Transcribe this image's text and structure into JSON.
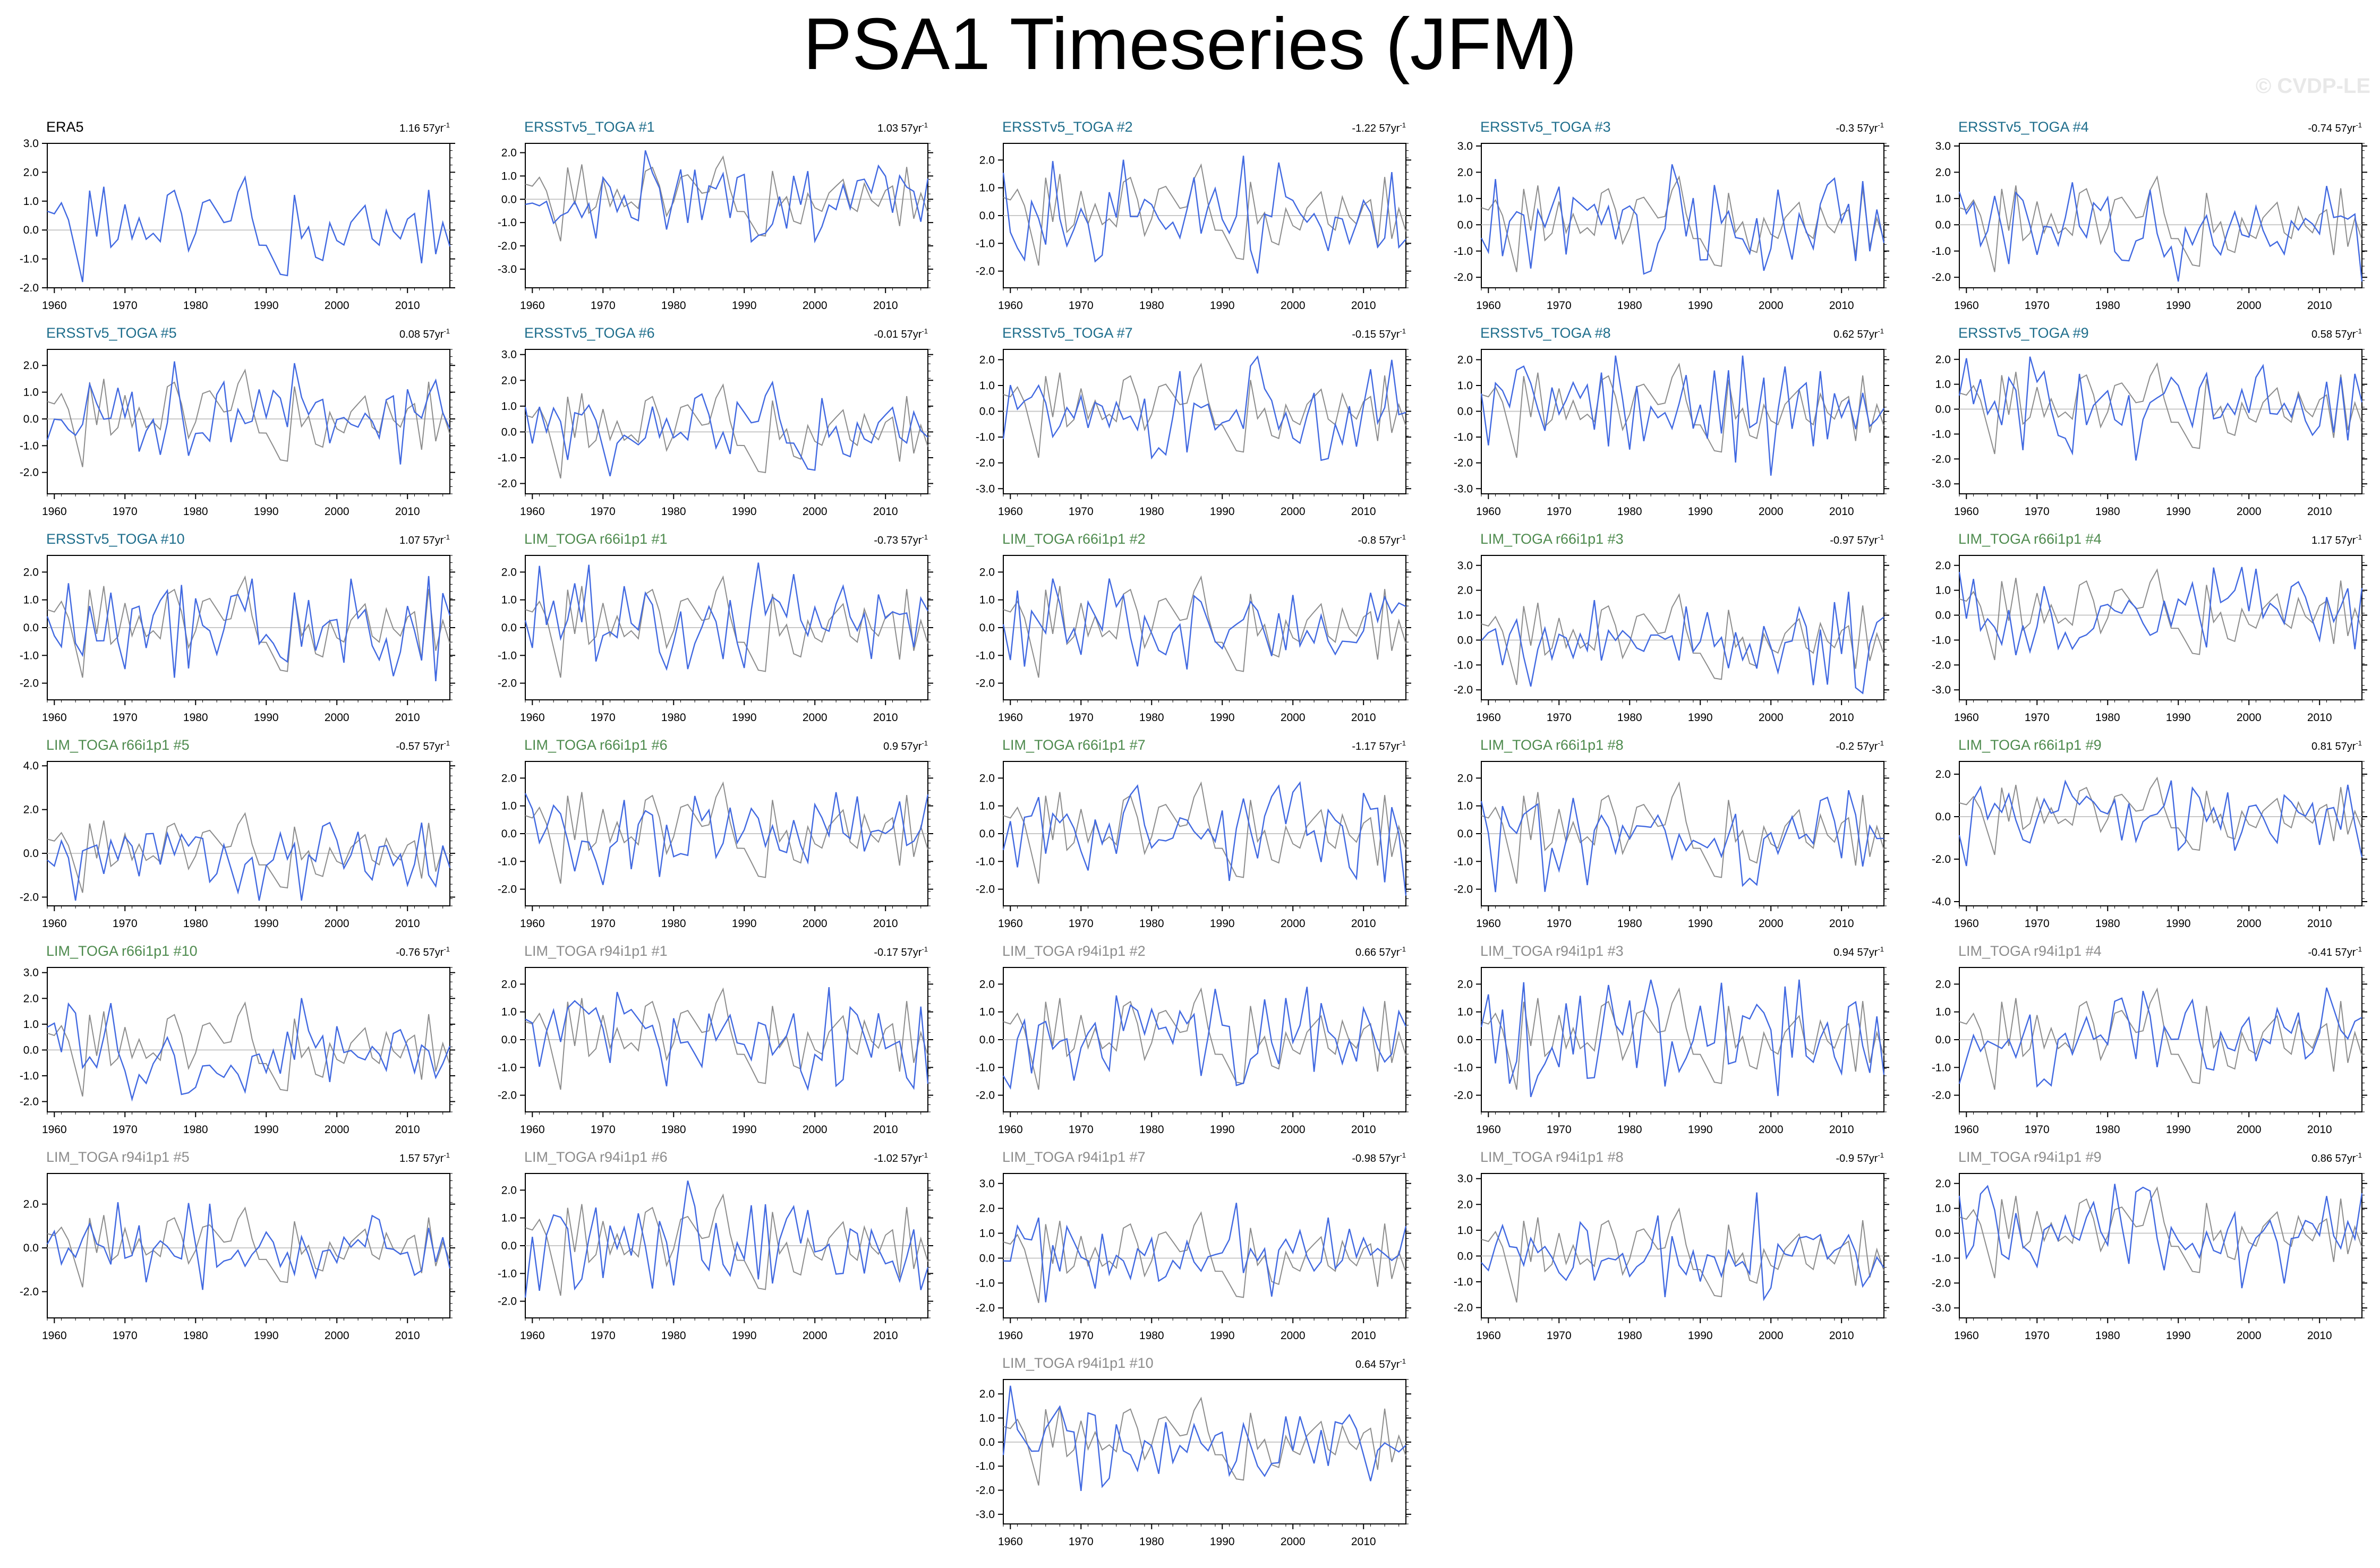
{
  "title": "PSA1 Timeseries (JFM)",
  "watermark": "© CVDP-LE",
  "colors": {
    "model_line": "#4169e1",
    "obs_line": "#8c8c8c",
    "zero_line": "#c8c8c8",
    "title_obs": "#000000",
    "title_ersst": "#1f6e8c",
    "title_lim66": "#4e8b4e",
    "title_lim94": "#8c8c8c"
  },
  "chart_data": [
    {
      "type": "line",
      "title": "ERA5",
      "title_color": "title_obs",
      "trend": "1.16",
      "trend_unit": "57yr",
      "ylim": [
        -2.0,
        3.0
      ],
      "yticks": [
        "3.0",
        "2.0",
        "1.0",
        "0.0",
        "-1.0",
        "-2.0"
      ],
      "xticks": [
        "1960",
        "1970",
        "1980",
        "1990",
        "2000",
        "2010"
      ],
      "x_range": [
        1959,
        2016
      ],
      "seed": 1
    },
    {
      "type": "line",
      "title": "ERSSTv5_TOGA #1",
      "title_color": "title_ersst",
      "trend": "1.03",
      "trend_unit": "57yr",
      "ylim": [
        -3.8,
        2.4
      ],
      "yticks": [
        "2.0",
        "1.0",
        "0.0",
        "-1.0",
        "-2.0",
        "-3.0"
      ],
      "xticks": [
        "1960",
        "1970",
        "1980",
        "1990",
        "2000",
        "2010"
      ],
      "x_range": [
        1959,
        2016
      ],
      "seed": 2
    },
    {
      "type": "line",
      "title": "ERSSTv5_TOGA #2",
      "title_color": "title_ersst",
      "trend": "-1.22",
      "trend_unit": "57yr",
      "ylim": [
        -2.6,
        2.6
      ],
      "yticks": [
        "2.0",
        "1.0",
        "0.0",
        "-1.0",
        "-2.0"
      ],
      "xticks": [
        "1960",
        "1970",
        "1980",
        "1990",
        "2000",
        "2010"
      ],
      "x_range": [
        1959,
        2016
      ],
      "seed": 3
    },
    {
      "type": "line",
      "title": "ERSSTv5_TOGA #3",
      "title_color": "title_ersst",
      "trend": "-0.3",
      "trend_unit": "57yr",
      "ylim": [
        -2.4,
        3.1
      ],
      "yticks": [
        "3.0",
        "2.0",
        "1.0",
        "0.0",
        "-1.0",
        "-2.0"
      ],
      "xticks": [
        "1960",
        "1970",
        "1980",
        "1990",
        "2000",
        "2010"
      ],
      "x_range": [
        1959,
        2016
      ],
      "seed": 4
    },
    {
      "type": "line",
      "title": "ERSSTv5_TOGA #4",
      "title_color": "title_ersst",
      "trend": "-0.74",
      "trend_unit": "57yr",
      "ylim": [
        -2.4,
        3.1
      ],
      "yticks": [
        "3.0",
        "2.0",
        "1.0",
        "0.0",
        "-1.0",
        "-2.0"
      ],
      "xticks": [
        "1960",
        "1970",
        "1980",
        "1990",
        "2000",
        "2010"
      ],
      "x_range": [
        1959,
        2016
      ],
      "seed": 5
    },
    {
      "type": "line",
      "title": "ERSSTv5_TOGA #5",
      "title_color": "title_ersst",
      "trend": "0.08",
      "trend_unit": "57yr",
      "ylim": [
        -2.8,
        2.6
      ],
      "yticks": [
        "2.0",
        "1.0",
        "0.0",
        "-1.0",
        "-2.0"
      ],
      "xticks": [
        "1960",
        "1970",
        "1980",
        "1990",
        "2000",
        "2010"
      ],
      "x_range": [
        1959,
        2016
      ],
      "seed": 6
    },
    {
      "type": "line",
      "title": "ERSSTv5_TOGA #6",
      "title_color": "title_ersst",
      "trend": "-0.01",
      "trend_unit": "57yr",
      "ylim": [
        -2.4,
        3.2
      ],
      "yticks": [
        "3.0",
        "2.0",
        "1.0",
        "0.0",
        "-1.0",
        "-2.0"
      ],
      "xticks": [
        "1960",
        "1970",
        "1980",
        "1990",
        "2000",
        "2010"
      ],
      "x_range": [
        1959,
        2016
      ],
      "seed": 7
    },
    {
      "type": "line",
      "title": "ERSSTv5_TOGA #7",
      "title_color": "title_ersst",
      "trend": "-0.15",
      "trend_unit": "57yr",
      "ylim": [
        -3.2,
        2.4
      ],
      "yticks": [
        "2.0",
        "1.0",
        "0.0",
        "-1.0",
        "-2.0",
        "-3.0"
      ],
      "xticks": [
        "1960",
        "1970",
        "1980",
        "1990",
        "2000",
        "2010"
      ],
      "x_range": [
        1959,
        2016
      ],
      "seed": 8
    },
    {
      "type": "line",
      "title": "ERSSTv5_TOGA #8",
      "title_color": "title_ersst",
      "trend": "0.62",
      "trend_unit": "57yr",
      "ylim": [
        -3.2,
        2.4
      ],
      "yticks": [
        "2.0",
        "1.0",
        "0.0",
        "-1.0",
        "-2.0",
        "-3.0"
      ],
      "xticks": [
        "1960",
        "1970",
        "1980",
        "1990",
        "2000",
        "2010"
      ],
      "x_range": [
        1959,
        2016
      ],
      "seed": 9
    },
    {
      "type": "line",
      "title": "ERSSTv5_TOGA #9",
      "title_color": "title_ersst",
      "trend": "0.58",
      "trend_unit": "57yr",
      "ylim": [
        -3.4,
        2.4
      ],
      "yticks": [
        "2.0",
        "1.0",
        "0.0",
        "-1.0",
        "-2.0",
        "-3.0"
      ],
      "xticks": [
        "1960",
        "1970",
        "1980",
        "1990",
        "2000",
        "2010"
      ],
      "x_range": [
        1959,
        2016
      ],
      "seed": 10
    },
    {
      "type": "line",
      "title": "ERSSTv5_TOGA #10",
      "title_color": "title_ersst",
      "trend": "1.07",
      "trend_unit": "57yr",
      "ylim": [
        -2.6,
        2.6
      ],
      "yticks": [
        "2.0",
        "1.0",
        "0.0",
        "-1.0",
        "-2.0"
      ],
      "xticks": [
        "1960",
        "1970",
        "1980",
        "1990",
        "2000",
        "2010"
      ],
      "x_range": [
        1959,
        2016
      ],
      "seed": 11
    },
    {
      "type": "line",
      "title": "LIM_TOGA r66i1p1 #1",
      "title_color": "title_lim66",
      "trend": "-0.73",
      "trend_unit": "57yr",
      "ylim": [
        -2.6,
        2.6
      ],
      "yticks": [
        "2.0",
        "1.0",
        "0.0",
        "-1.0",
        "-2.0"
      ],
      "xticks": [
        "1960",
        "1970",
        "1980",
        "1990",
        "2000",
        "2010"
      ],
      "x_range": [
        1959,
        2016
      ],
      "seed": 12
    },
    {
      "type": "line",
      "title": "LIM_TOGA r66i1p1 #2",
      "title_color": "title_lim66",
      "trend": "-0.8",
      "trend_unit": "57yr",
      "ylim": [
        -2.6,
        2.6
      ],
      "yticks": [
        "2.0",
        "1.0",
        "0.0",
        "-1.0",
        "-2.0"
      ],
      "xticks": [
        "1960",
        "1970",
        "1980",
        "1990",
        "2000",
        "2010"
      ],
      "x_range": [
        1959,
        2016
      ],
      "seed": 13
    },
    {
      "type": "line",
      "title": "LIM_TOGA r66i1p1 #3",
      "title_color": "title_lim66",
      "trend": "-0.97",
      "trend_unit": "57yr",
      "ylim": [
        -2.4,
        3.4
      ],
      "yticks": [
        "3.0",
        "2.0",
        "1.0",
        "0.0",
        "-1.0",
        "-2.0"
      ],
      "xticks": [
        "1960",
        "1970",
        "1980",
        "1990",
        "2000",
        "2010"
      ],
      "x_range": [
        1959,
        2016
      ],
      "seed": 14
    },
    {
      "type": "line",
      "title": "LIM_TOGA r66i1p1 #4",
      "title_color": "title_lim66",
      "trend": "1.17",
      "trend_unit": "57yr",
      "ylim": [
        -3.4,
        2.4
      ],
      "yticks": [
        "2.0",
        "1.0",
        "0.0",
        "-1.0",
        "-2.0",
        "-3.0"
      ],
      "xticks": [
        "1960",
        "1970",
        "1980",
        "1990",
        "2000",
        "2010"
      ],
      "x_range": [
        1959,
        2016
      ],
      "seed": 15
    },
    {
      "type": "line",
      "title": "LIM_TOGA r66i1p1 #5",
      "title_color": "title_lim66",
      "trend": "-0.57",
      "trend_unit": "57yr",
      "ylim": [
        -2.4,
        4.2
      ],
      "yticks": [
        "4.0",
        "2.0",
        "0.0",
        "-2.0"
      ],
      "xticks": [
        "1960",
        "1970",
        "1980",
        "1990",
        "2000",
        "2010"
      ],
      "x_range": [
        1959,
        2016
      ],
      "seed": 16
    },
    {
      "type": "line",
      "title": "LIM_TOGA r66i1p1 #6",
      "title_color": "title_lim66",
      "trend": "0.9",
      "trend_unit": "57yr",
      "ylim": [
        -2.6,
        2.6
      ],
      "yticks": [
        "2.0",
        "1.0",
        "0.0",
        "-1.0",
        "-2.0"
      ],
      "xticks": [
        "1960",
        "1970",
        "1980",
        "1990",
        "2000",
        "2010"
      ],
      "x_range": [
        1959,
        2016
      ],
      "seed": 17
    },
    {
      "type": "line",
      "title": "LIM_TOGA r66i1p1 #7",
      "title_color": "title_lim66",
      "trend": "-1.17",
      "trend_unit": "57yr",
      "ylim": [
        -2.6,
        2.6
      ],
      "yticks": [
        "2.0",
        "1.0",
        "0.0",
        "-1.0",
        "-2.0"
      ],
      "xticks": [
        "1960",
        "1970",
        "1980",
        "1990",
        "2000",
        "2010"
      ],
      "x_range": [
        1959,
        2016
      ],
      "seed": 18
    },
    {
      "type": "line",
      "title": "LIM_TOGA r66i1p1 #8",
      "title_color": "title_lim66",
      "trend": "-0.2",
      "trend_unit": "57yr",
      "ylim": [
        -2.6,
        2.6
      ],
      "yticks": [
        "2.0",
        "1.0",
        "0.0",
        "-1.0",
        "-2.0"
      ],
      "xticks": [
        "1960",
        "1970",
        "1980",
        "1990",
        "2000",
        "2010"
      ],
      "x_range": [
        1959,
        2016
      ],
      "seed": 19
    },
    {
      "type": "line",
      "title": "LIM_TOGA r66i1p1 #9",
      "title_color": "title_lim66",
      "trend": "0.81",
      "trend_unit": "57yr",
      "ylim": [
        -4.2,
        2.6
      ],
      "yticks": [
        "2.0",
        "0.0",
        "-2.0",
        "-4.0"
      ],
      "xticks": [
        "1960",
        "1970",
        "1980",
        "1990",
        "2000",
        "2010"
      ],
      "x_range": [
        1959,
        2016
      ],
      "seed": 20
    },
    {
      "type": "line",
      "title": "LIM_TOGA r66i1p1 #10",
      "title_color": "title_lim66",
      "trend": "-0.76",
      "trend_unit": "57yr",
      "ylim": [
        -2.4,
        3.2
      ],
      "yticks": [
        "3.0",
        "2.0",
        "1.0",
        "0.0",
        "-1.0",
        "-2.0"
      ],
      "xticks": [
        "1960",
        "1970",
        "1980",
        "1990",
        "2000",
        "2010"
      ],
      "x_range": [
        1959,
        2016
      ],
      "seed": 21
    },
    {
      "type": "line",
      "title": "LIM_TOGA r94i1p1 #1",
      "title_color": "title_lim94",
      "trend": "-0.17",
      "trend_unit": "57yr",
      "ylim": [
        -2.6,
        2.6
      ],
      "yticks": [
        "2.0",
        "1.0",
        "0.0",
        "-1.0",
        "-2.0"
      ],
      "xticks": [
        "1960",
        "1970",
        "1980",
        "1990",
        "2000",
        "2010"
      ],
      "x_range": [
        1959,
        2016
      ],
      "seed": 22
    },
    {
      "type": "line",
      "title": "LIM_TOGA r94i1p1 #2",
      "title_color": "title_lim94",
      "trend": "0.66",
      "trend_unit": "57yr",
      "ylim": [
        -2.6,
        2.6
      ],
      "yticks": [
        "2.0",
        "1.0",
        "0.0",
        "-1.0",
        "-2.0"
      ],
      "xticks": [
        "1960",
        "1970",
        "1980",
        "1990",
        "2000",
        "2010"
      ],
      "x_range": [
        1959,
        2016
      ],
      "seed": 23
    },
    {
      "type": "line",
      "title": "LIM_TOGA r94i1p1 #3",
      "title_color": "title_lim94",
      "trend": "0.94",
      "trend_unit": "57yr",
      "ylim": [
        -2.6,
        2.6
      ],
      "yticks": [
        "2.0",
        "1.0",
        "0.0",
        "-1.0",
        "-2.0"
      ],
      "xticks": [
        "1960",
        "1970",
        "1980",
        "1990",
        "2000",
        "2010"
      ],
      "x_range": [
        1959,
        2016
      ],
      "seed": 24
    },
    {
      "type": "line",
      "title": "LIM_TOGA r94i1p1 #4",
      "title_color": "title_lim94",
      "trend": "-0.41",
      "trend_unit": "57yr",
      "ylim": [
        -2.6,
        2.6
      ],
      "yticks": [
        "2.0",
        "1.0",
        "0.0",
        "-1.0",
        "-2.0"
      ],
      "xticks": [
        "1960",
        "1970",
        "1980",
        "1990",
        "2000",
        "2010"
      ],
      "x_range": [
        1959,
        2016
      ],
      "seed": 25
    },
    {
      "type": "line",
      "title": "LIM_TOGA r94i1p1 #5",
      "title_color": "title_lim94",
      "trend": "1.57",
      "trend_unit": "57yr",
      "ylim": [
        -3.2,
        3.4
      ],
      "yticks": [
        "2.0",
        "0.0",
        "-2.0"
      ],
      "xticks": [
        "1960",
        "1970",
        "1980",
        "1990",
        "2000",
        "2010"
      ],
      "x_range": [
        1959,
        2016
      ],
      "seed": 26
    },
    {
      "type": "line",
      "title": "LIM_TOGA r94i1p1 #6",
      "title_color": "title_lim94",
      "trend": "-1.02",
      "trend_unit": "57yr",
      "ylim": [
        -2.6,
        2.6
      ],
      "yticks": [
        "2.0",
        "1.0",
        "0.0",
        "-1.0",
        "-2.0"
      ],
      "xticks": [
        "1960",
        "1970",
        "1980",
        "1990",
        "2000",
        "2010"
      ],
      "x_range": [
        1959,
        2016
      ],
      "seed": 27
    },
    {
      "type": "line",
      "title": "LIM_TOGA r94i1p1 #7",
      "title_color": "title_lim94",
      "trend": "-0.98",
      "trend_unit": "57yr",
      "ylim": [
        -2.4,
        3.4
      ],
      "yticks": [
        "3.0",
        "2.0",
        "1.0",
        "0.0",
        "-1.0",
        "-2.0"
      ],
      "xticks": [
        "1960",
        "1970",
        "1980",
        "1990",
        "2000",
        "2010"
      ],
      "x_range": [
        1959,
        2016
      ],
      "seed": 28
    },
    {
      "type": "line",
      "title": "LIM_TOGA r94i1p1 #8",
      "title_color": "title_lim94",
      "trend": "-0.9",
      "trend_unit": "57yr",
      "ylim": [
        -2.4,
        3.2
      ],
      "yticks": [
        "3.0",
        "2.0",
        "1.0",
        "0.0",
        "-1.0",
        "-2.0"
      ],
      "xticks": [
        "1960",
        "1970",
        "1980",
        "1990",
        "2000",
        "2010"
      ],
      "x_range": [
        1959,
        2016
      ],
      "seed": 29
    },
    {
      "type": "line",
      "title": "LIM_TOGA r94i1p1 #9",
      "title_color": "title_lim94",
      "trend": "0.86",
      "trend_unit": "57yr",
      "ylim": [
        -3.4,
        2.4
      ],
      "yticks": [
        "2.0",
        "1.0",
        "0.0",
        "-1.0",
        "-2.0",
        "-3.0"
      ],
      "xticks": [
        "1960",
        "1970",
        "1980",
        "1990",
        "2000",
        "2010"
      ],
      "x_range": [
        1959,
        2016
      ],
      "seed": 30
    },
    {
      "type": "line",
      "title": "LIM_TOGA r94i1p1 #10",
      "title_color": "title_lim94",
      "trend": "0.64",
      "trend_unit": "57yr",
      "ylim": [
        -3.4,
        2.6
      ],
      "yticks": [
        "2.0",
        "1.0",
        "0.0",
        "-1.0",
        "-2.0",
        "-3.0"
      ],
      "xticks": [
        "1960",
        "1970",
        "1980",
        "1990",
        "2000",
        "2010"
      ],
      "x_range": [
        1959,
        2016
      ],
      "seed": 31
    }
  ]
}
